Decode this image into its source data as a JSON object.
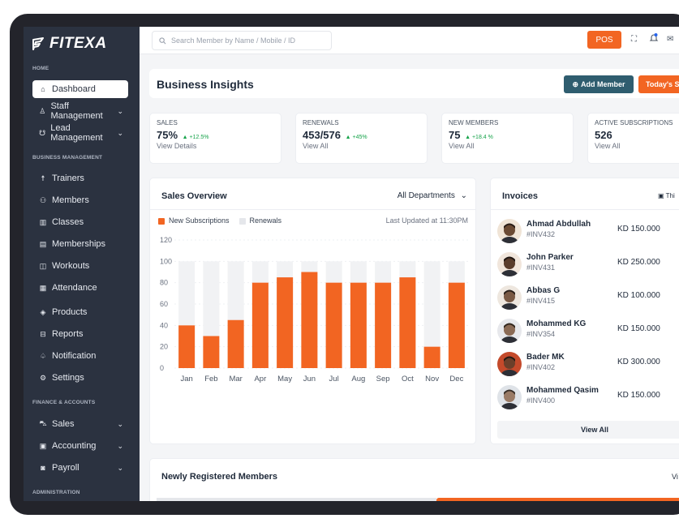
{
  "brand": {
    "name": "FITEXA"
  },
  "sidebar": {
    "sections": {
      "home": "HOME",
      "business": "BUSINESS MANAGEMENT",
      "finance": "FINANCE & ACCOUNTS",
      "admin": "ADMINISTRATION"
    },
    "items": [
      {
        "label": "Dashboard",
        "icon": "home-icon"
      },
      {
        "label": "Staff Management",
        "icon": "staff-icon"
      },
      {
        "label": "Lead Management",
        "icon": "lead-icon"
      },
      {
        "label": "Trainers",
        "icon": "trainer-icon"
      },
      {
        "label": "Members",
        "icon": "members-icon"
      },
      {
        "label": "Classes",
        "icon": "classes-icon"
      },
      {
        "label": "Memberships",
        "icon": "membership-icon"
      },
      {
        "label": "Workouts",
        "icon": "workouts-icon"
      },
      {
        "label": "Attendance",
        "icon": "attendance-icon"
      },
      {
        "label": "Products",
        "icon": "products-icon"
      },
      {
        "label": "Reports",
        "icon": "reports-icon"
      },
      {
        "label": "Notification",
        "icon": "bell-icon"
      },
      {
        "label": "Settings",
        "icon": "gear-icon"
      },
      {
        "label": "Sales",
        "icon": "cart-icon"
      },
      {
        "label": "Accounting",
        "icon": "accounting-icon"
      },
      {
        "label": "Payroll",
        "icon": "payroll-icon"
      }
    ]
  },
  "topbar": {
    "search_placeholder": "Search Member by Name / Mobile / ID",
    "pos_label": "POS"
  },
  "header": {
    "title": "Business Insights",
    "add_member": "Add Member",
    "today": "Today's Sc"
  },
  "stats": [
    {
      "label": "SALES",
      "value": "75%",
      "change": "+12.5%",
      "link": "View Details"
    },
    {
      "label": "RENEWALS",
      "value": "453/576",
      "change": "+45%",
      "link": "View All"
    },
    {
      "label": "NEW MEMBERS",
      "value": "75",
      "change": "+18.4 %",
      "link": "View All"
    },
    {
      "label": "ACTIVE SUBSCRIPTIONS",
      "value": "526",
      "change": "",
      "link": "View All"
    }
  ],
  "sales_overview": {
    "title": "Sales Overview",
    "department": "All Departments",
    "legend_new": "New Subscriptions",
    "legend_renew": "Renewals",
    "updated": "Last Updated at 11:30PM"
  },
  "chart_data": {
    "type": "bar",
    "categories": [
      "Jan",
      "Feb",
      "Mar",
      "Apr",
      "May",
      "Jun",
      "Jul",
      "Aug",
      "Sep",
      "Oct",
      "Nov",
      "Dec"
    ],
    "series": [
      {
        "name": "New Subscriptions",
        "values": [
          40,
          30,
          45,
          80,
          85,
          90,
          80,
          80,
          80,
          85,
          20,
          80
        ],
        "color": "#f26522"
      },
      {
        "name": "Renewals",
        "values": [
          100,
          100,
          100,
          100,
          100,
          100,
          100,
          100,
          100,
          100,
          100,
          100
        ],
        "color": "#f1f2f4"
      }
    ],
    "yticks": [
      0,
      20,
      40,
      60,
      80,
      100,
      120
    ],
    "ylim": [
      0,
      120
    ],
    "grid": true
  },
  "invoices": {
    "title": "Invoices",
    "filter": "Thi",
    "rows": [
      {
        "name": "Ahmad Abdullah",
        "id": "#INV432",
        "amount": "KD 150.000"
      },
      {
        "name": "John Parker",
        "id": "#INV431",
        "amount": "KD 250.000"
      },
      {
        "name": "Abbas G",
        "id": "#INV415",
        "amount": "KD 100.000"
      },
      {
        "name": "Mohammed KG",
        "id": "#INV354",
        "amount": "KD 150.000"
      },
      {
        "name": "Bader MK",
        "id": "#INV402",
        "amount": "KD 300.000"
      },
      {
        "name": "Mohammed Qasim",
        "id": "#INV400",
        "amount": "KD 150.000"
      }
    ],
    "view_all": "View All"
  },
  "newly": {
    "title": "Newly Registered Members",
    "view": "Vi"
  },
  "colors": {
    "accent": "#f26522",
    "sidebar": "#2b3240",
    "teal": "#2f5d6f",
    "positive": "#16a34a"
  }
}
